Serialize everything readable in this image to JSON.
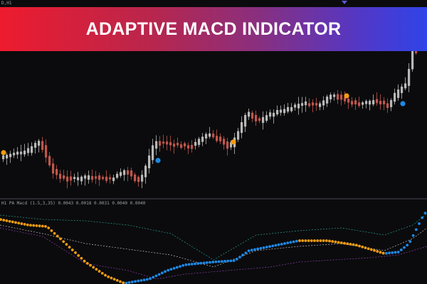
{
  "symbol_label": "D,H1",
  "banner": {
    "title": "ADAPTIVE MACD INDICATOR"
  },
  "indicator": {
    "label": "H1 PA Macd (1.5,3,35) 0.0043 0.0018 0.0031 0.0040 0.0040"
  },
  "colors": {
    "bull_candle": "#b8b8b8",
    "bear_candle": "#c0564b",
    "buy_signal": "#1e88e5",
    "sell_signal": "#f39c12",
    "macd_rising": "#1e88e5",
    "macd_falling": "#f39c12",
    "band_upper": "#2a9d8f",
    "band_mid": "#bdbdbd",
    "band_lower": "#8e3ea8"
  },
  "icons": {
    "top_marker": "triangle-down-icon"
  }
}
